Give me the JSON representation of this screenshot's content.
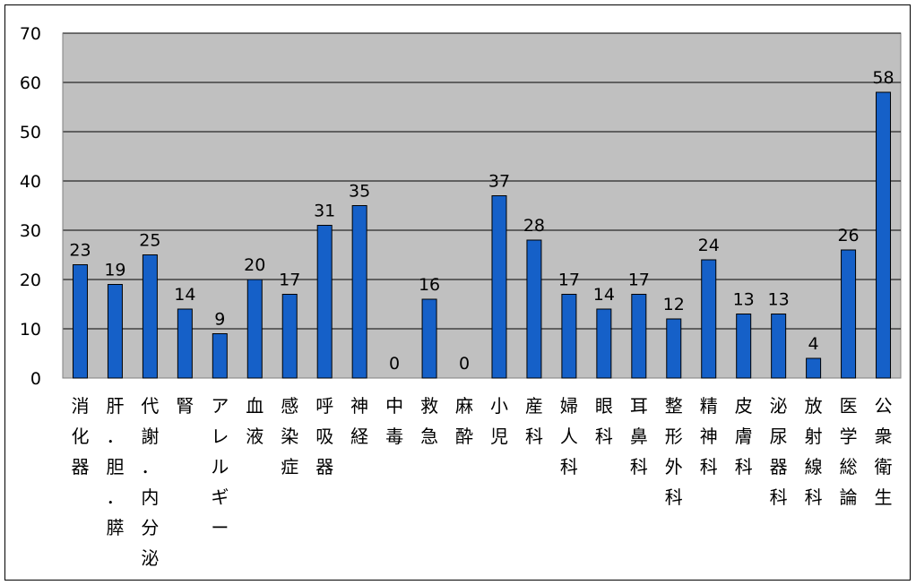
{
  "chart_data": {
    "type": "bar",
    "categories": [
      "消化器",
      "肝．胆．膵",
      "代謝．内分泌",
      "腎",
      "アレルギー",
      "血液",
      "感染症",
      "呼吸器",
      "神経",
      "中毒",
      "救急",
      "麻酔",
      "小児",
      "産科",
      "婦人科",
      "眼科",
      "耳鼻科",
      "整形外科",
      "精神科",
      "皮膚科",
      "泌尿器科",
      "放射線科",
      "医学総論",
      "公衆衛生"
    ],
    "values": [
      23,
      19,
      25,
      14,
      9,
      20,
      17,
      31,
      35,
      0,
      16,
      0,
      37,
      28,
      17,
      14,
      17,
      12,
      24,
      13,
      13,
      4,
      26,
      58
    ],
    "ylim": [
      0,
      70
    ],
    "yticks": [
      0,
      10,
      20,
      30,
      40,
      50,
      60,
      70
    ],
    "grid": true,
    "legend": "none",
    "colors": {
      "bar": "#1560c8",
      "bar_edge": "#000000",
      "plot_bg": "#c0c0c0",
      "gridline": "#000000"
    }
  }
}
